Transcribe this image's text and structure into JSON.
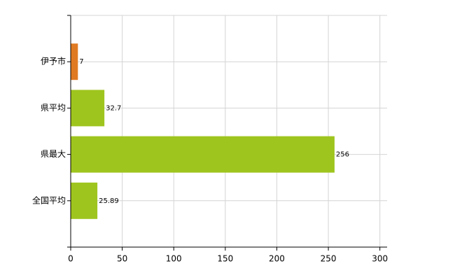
{
  "chart_data": {
    "type": "hbar",
    "categories": [
      "伊予市",
      "県平均",
      "県最大",
      "全国平均"
    ],
    "values": [
      7,
      32.7,
      256,
      25.89
    ],
    "colors": [
      "#e07a22",
      "#9ec51e",
      "#9ec51e",
      "#9ec51e"
    ],
    "xlim": [
      0,
      307
    ],
    "xticks": [
      0,
      50,
      100,
      150,
      200,
      250,
      300
    ],
    "grid": true
  }
}
